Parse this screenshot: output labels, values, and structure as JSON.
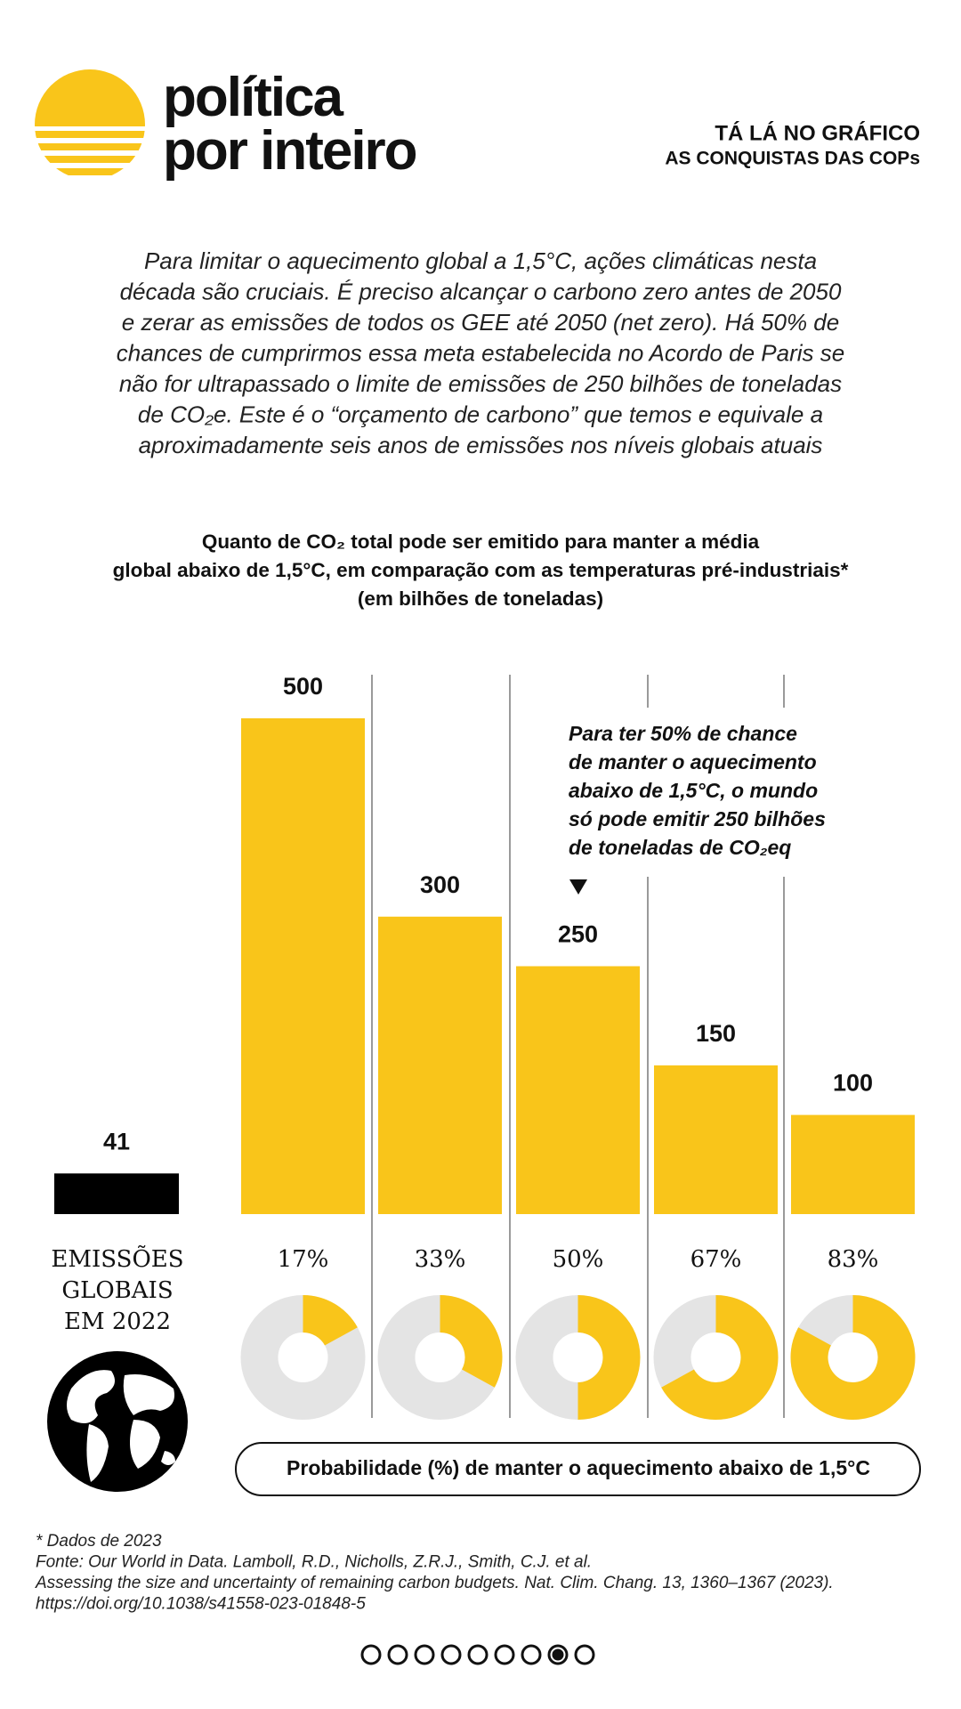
{
  "header": {
    "brand": [
      "política",
      "por inteiro"
    ],
    "tag": [
      "TÁ LÁ NO GRÁFICO",
      "AS CONQUISTAS DAS COPs"
    ]
  },
  "intro": [
    "Para limitar o aquecimento global a 1,5°C, ações climáticas nesta",
    "década são cruciais. É preciso alcançar o carbono zero antes de 2050",
    "e zerar as emissões de todos os GEE até 2050 (net zero). Há 50% de",
    "chances de cumprirmos essa meta estabelecida no Acordo de Paris se",
    "não for ultrapassado o limite de emissões de 250 bilhões de toneladas",
    "de CO₂e. Este é o “orçamento de carbono” que temos e equivale a",
    "aproximadamente seis anos de emissões nos níveis globais atuais"
  ],
  "chart_data": {
    "type": "bar",
    "title": [
      "Quanto de CO₂ total pode ser emitido para manter a média",
      "global abaixo de 1,5°C, em comparação com as temperaturas pré-industriais*"
    ],
    "subtitle": "(em bilhões de toneladas)",
    "values": [
      500,
      300,
      250,
      150,
      100
    ],
    "color": "#f9c51a",
    "reference": {
      "value": 41,
      "label": [
        "EMISSÕES",
        "GLOBAIS",
        "EM 2022"
      ],
      "color": "#000000"
    },
    "annotation": [
      "Para ter 50% de chance",
      "de manter o aquecimento",
      "abaixo de 1,5°C, o mundo",
      "só pode emitir 250 bilhões",
      "de toneladas de CO₂eq"
    ],
    "probabilities": {
      "values": [
        17,
        33,
        50,
        67,
        83
      ],
      "value_labels": [
        "17%",
        "33%",
        "50%",
        "67%",
        "83%"
      ],
      "color": "#f9c51a",
      "rest_color": "#e4e4e4",
      "label": "Probabilidade (%) de manter o aquecimento abaixo de 1,5°C"
    }
  },
  "footer": [
    "* Dados de  2023",
    "Fonte: Our World in Data. Lamboll, R.D., Nicholls, Z.R.J., Smith, C.J. et al.",
    "Assessing the size and uncertainty of remaining carbon budgets. Nat. Clim. Chang. 13, 1360–1367 (2023).",
    "https://doi.org/10.1038/s41558-023-01848-5"
  ]
}
